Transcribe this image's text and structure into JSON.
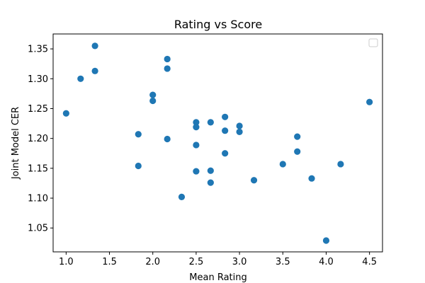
{
  "chart_data": {
    "type": "scatter",
    "title": "Rating vs Score",
    "xlabel": "Mean Rating",
    "ylabel": "Joint Model CER",
    "xlim": [
      0.85,
      4.65
    ],
    "ylim": [
      1.01,
      1.375
    ],
    "xticks": [
      1.0,
      1.5,
      2.0,
      2.5,
      3.0,
      3.5,
      4.0,
      4.5
    ],
    "xtick_labels": [
      "1.0",
      "1.5",
      "2.0",
      "2.5",
      "3.0",
      "3.5",
      "4.0",
      "4.5"
    ],
    "yticks": [
      1.05,
      1.1,
      1.15,
      1.2,
      1.25,
      1.3,
      1.35
    ],
    "ytick_labels": [
      "1.05",
      "1.10",
      "1.15",
      "1.20",
      "1.25",
      "1.30",
      "1.35"
    ],
    "grid": false,
    "legend": {
      "placement": "top-right",
      "entries": []
    },
    "series": [
      {
        "color": "#1f77b4",
        "points": [
          [
            1.0,
            1.242
          ],
          [
            1.167,
            1.3
          ],
          [
            1.333,
            1.355
          ],
          [
            1.333,
            1.313
          ],
          [
            1.833,
            1.207
          ],
          [
            1.833,
            1.154
          ],
          [
            2.0,
            1.273
          ],
          [
            2.0,
            1.263
          ],
          [
            2.167,
            1.333
          ],
          [
            2.167,
            1.317
          ],
          [
            2.167,
            1.199
          ],
          [
            2.333,
            1.102
          ],
          [
            2.5,
            1.227
          ],
          [
            2.5,
            1.219
          ],
          [
            2.5,
            1.189
          ],
          [
            2.5,
            1.145
          ],
          [
            2.667,
            1.227
          ],
          [
            2.667,
            1.146
          ],
          [
            2.667,
            1.126
          ],
          [
            2.833,
            1.236
          ],
          [
            2.833,
            1.213
          ],
          [
            2.833,
            1.175
          ],
          [
            3.0,
            1.221
          ],
          [
            3.0,
            1.211
          ],
          [
            3.167,
            1.13
          ],
          [
            3.5,
            1.157
          ],
          [
            3.667,
            1.203
          ],
          [
            3.667,
            1.178
          ],
          [
            3.833,
            1.133
          ],
          [
            4.0,
            1.029
          ],
          [
            4.167,
            1.157
          ],
          [
            4.5,
            1.261
          ]
        ]
      }
    ]
  }
}
